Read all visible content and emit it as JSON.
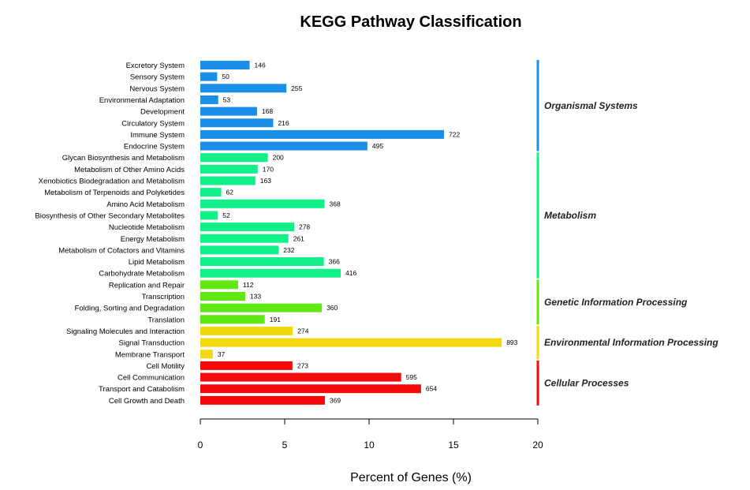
{
  "chart_data": {
    "type": "bar",
    "orientation": "horizontal",
    "title": "KEGG Pathway Classification",
    "xlabel": "Percent of Genes (%)",
    "ylabel": "",
    "xlim": [
      0,
      20
    ],
    "xticks": [
      "0",
      "5",
      "10",
      "15",
      "20"
    ],
    "grid": false,
    "categories": [
      "Excretory System",
      "Sensory System",
      "Nervous System",
      "Environmental Adaptation",
      "Development",
      "Circulatory System",
      "Immune System",
      "Endocrine System",
      "Glycan Biosynthesis and Metabolism",
      "Metabolism of Other Amino Acids",
      "Xenobiotics Biodegradation and Metabolism",
      "Metabolism of Terpenoids and Polyketides",
      "Amino Acid Metabolism",
      "Biosynthesis of Other Secondary Metabolites",
      "Nucleotide Metabolism",
      "Energy Metabolism",
      "Metabolism of Cofactors and Vitamins",
      "Lipid Metabolism",
      "Carbohydrate Metabolism",
      "Replication and Repair",
      "Transcription",
      "Folding, Sorting and Degradation",
      "Translation",
      "Signaling Molecules and Interaction",
      "Signal Transduction",
      "Membrane Transport",
      "Cell Motility",
      "Cell Communication",
      "Transport and Catabolism",
      "Cell Growth and Death"
    ],
    "values": [
      2.92,
      1.0,
      5.1,
      1.06,
      3.36,
      4.32,
      14.44,
      9.9,
      4.0,
      3.4,
      3.26,
      1.24,
      7.36,
      1.04,
      5.56,
      5.22,
      4.64,
      7.32,
      8.32,
      2.24,
      2.66,
      7.2,
      3.82,
      5.48,
      17.86,
      0.74,
      5.46,
      11.9,
      13.08,
      7.38
    ],
    "data_labels": [
      "146",
      "50",
      "255",
      "53",
      "168",
      "216",
      "722",
      "495",
      "200",
      "170",
      "163",
      "62",
      "368",
      "52",
      "278",
      "261",
      "232",
      "366",
      "416",
      "112",
      "133",
      "360",
      "191",
      "274",
      "893",
      "37",
      "273",
      "595",
      "654",
      "369"
    ],
    "groups": [
      {
        "name": "Organismal Systems",
        "count": 8,
        "color": "#1a8fe8"
      },
      {
        "name": "Metabolism",
        "count": 11,
        "color": "#12f08a"
      },
      {
        "name": "Genetic Information Processing",
        "count": 4,
        "color": "#5fe812"
      },
      {
        "name": "Environmental Information Processing",
        "count": 3,
        "color": "#f4d80e"
      },
      {
        "name": "Cellular Processes",
        "count": 4,
        "color": "#f20a0a"
      }
    ]
  }
}
